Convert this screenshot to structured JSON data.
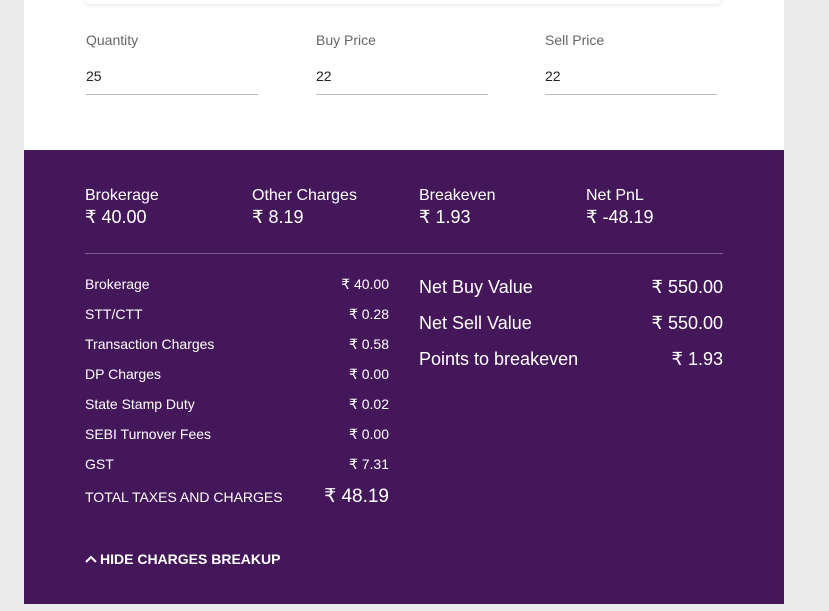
{
  "inputs": [
    {
      "label": "Quantity",
      "value": "25"
    },
    {
      "label": "Buy Price",
      "value": "22"
    },
    {
      "label": "Sell Price",
      "value": "22"
    }
  ],
  "summary": [
    {
      "title": "Brokerage",
      "value": "₹ 40.00"
    },
    {
      "title": "Other Charges",
      "value": "₹ 8.19"
    },
    {
      "title": "Breakeven",
      "value": "₹ 1.93"
    },
    {
      "title": "Net PnL",
      "value": "₹ -48.19"
    }
  ],
  "charges": [
    {
      "label": "Brokerage",
      "value": "₹ 40.00"
    },
    {
      "label": "STT/CTT",
      "value": "₹ 0.28"
    },
    {
      "label": "Transaction Charges",
      "value": "₹ 0.58"
    },
    {
      "label": "DP Charges",
      "value": "₹ 0.00"
    },
    {
      "label": "State Stamp Duty",
      "value": "₹ 0.02"
    },
    {
      "label": "SEBI Turnover Fees",
      "value": "₹ 0.00"
    },
    {
      "label": "GST",
      "value": "₹ 7.31"
    }
  ],
  "total": {
    "label": "TOTAL TAXES AND CHARGES",
    "value": "₹ 48.19"
  },
  "values": [
    {
      "label": "Net Buy Value",
      "value": "₹ 550.00"
    },
    {
      "label": "Net Sell Value",
      "value": "₹ 550.00"
    },
    {
      "label": "Points to breakeven",
      "value": "₹ 1.93"
    }
  ],
  "toggle": {
    "label": "HIDE CHARGES BREAKUP",
    "icon": "chevron-up-icon"
  },
  "colors": {
    "accent": "#44175a"
  }
}
